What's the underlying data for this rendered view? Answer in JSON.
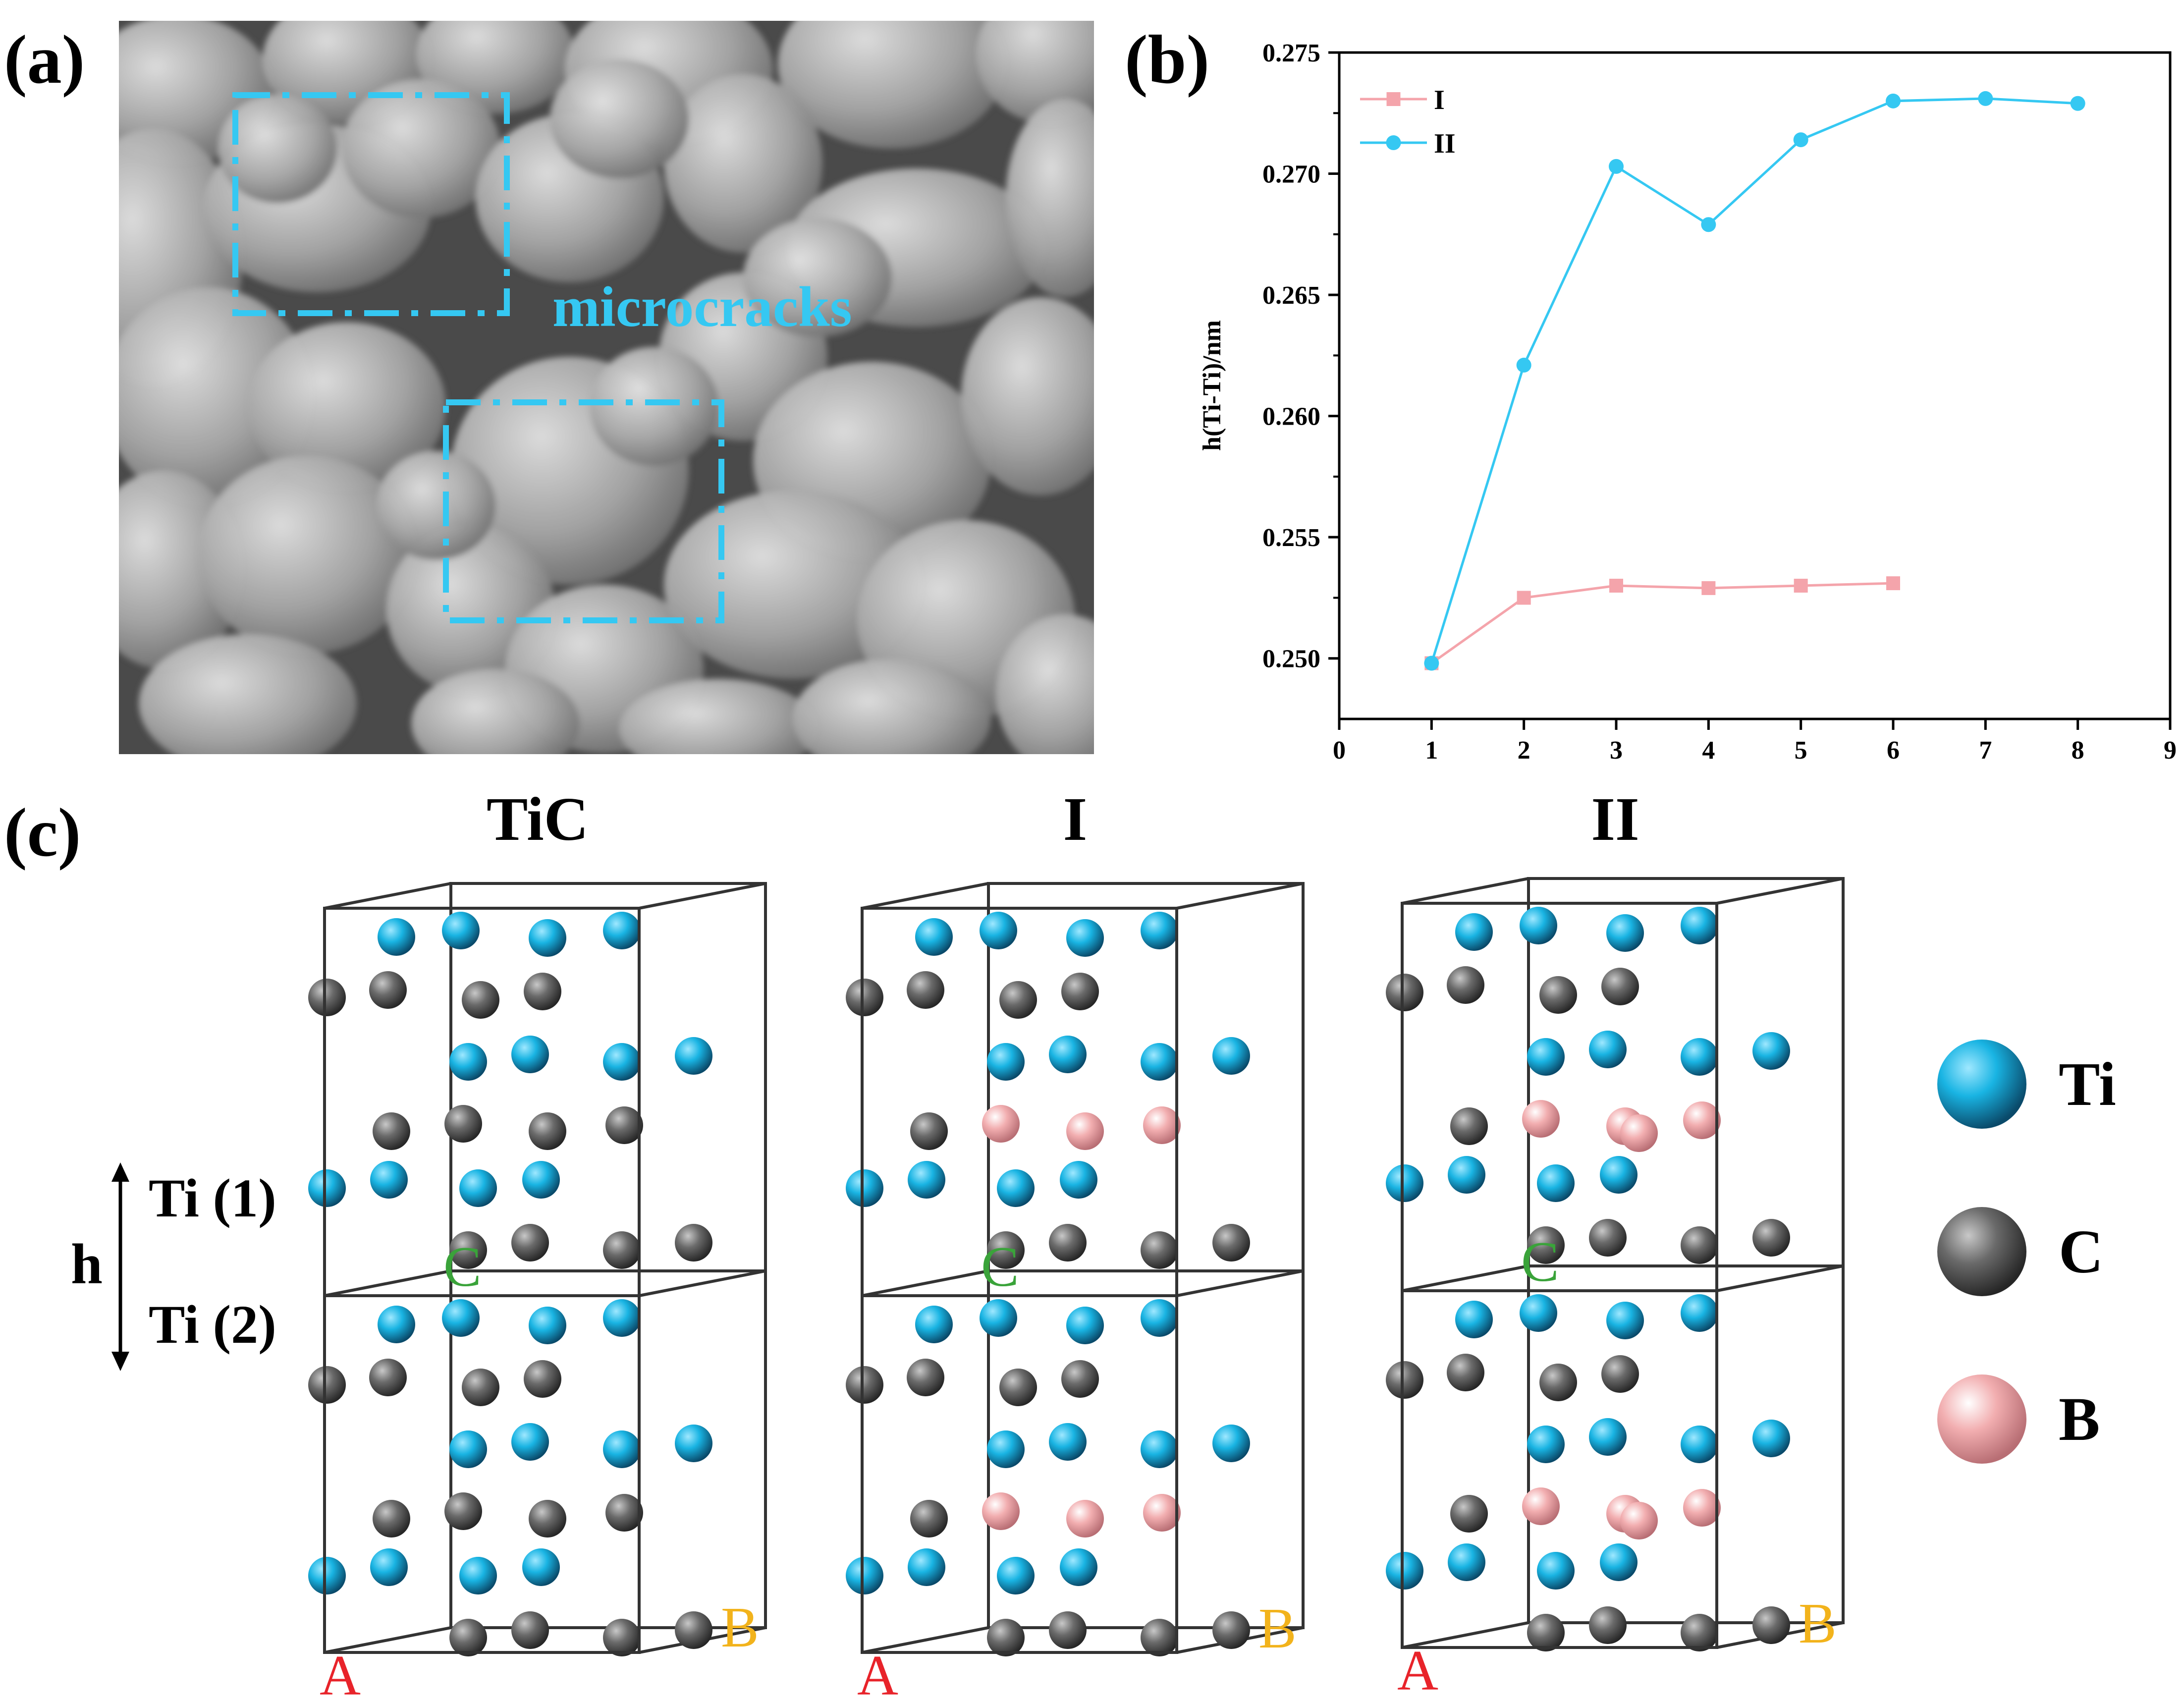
{
  "panels": {
    "a": "(a)",
    "b": "(b)",
    "c": "(c)"
  },
  "sem": {
    "annotation": "microcracks",
    "box_color": "#35c8f2"
  },
  "chart_data": {
    "type": "line",
    "ylabel": "h(Ti-Ti)/nm",
    "xlabel": "",
    "xlim": [
      0,
      9
    ],
    "ylim": [
      0.2475,
      0.275
    ],
    "xticks": [
      0,
      1,
      2,
      3,
      4,
      5,
      6,
      7,
      8,
      9
    ],
    "yticks": [
      0.25,
      0.255,
      0.26,
      0.265,
      0.27,
      0.275
    ],
    "legend_position": "top-left",
    "series": [
      {
        "name": "I",
        "color": "#f4a4ab",
        "marker": "square",
        "x": [
          1,
          2,
          3,
          4,
          5,
          6
        ],
        "values": [
          0.2498,
          0.2525,
          0.253,
          0.2529,
          0.253,
          0.2531
        ]
      },
      {
        "name": "II",
        "color": "#35c8f2",
        "marker": "circle",
        "x": [
          1,
          2,
          3,
          4,
          5,
          6,
          7,
          8
        ],
        "values": [
          0.2498,
          0.2621,
          0.2703,
          0.2679,
          0.2714,
          0.273,
          0.2731,
          0.2729
        ]
      }
    ]
  },
  "structures": {
    "titles": [
      "TiC",
      "I",
      "II"
    ],
    "axis_labels": {
      "a": "A",
      "b": "B",
      "c": "C"
    },
    "h_label": "h",
    "ti1_label": "Ti (1)",
    "ti2_label": "Ti (2)",
    "legend": [
      {
        "label": "Ti",
        "color": "#19b4e3"
      },
      {
        "label": "C",
        "color": "#646464"
      },
      {
        "label": "B",
        "color": "#f2aeb0"
      }
    ]
  }
}
